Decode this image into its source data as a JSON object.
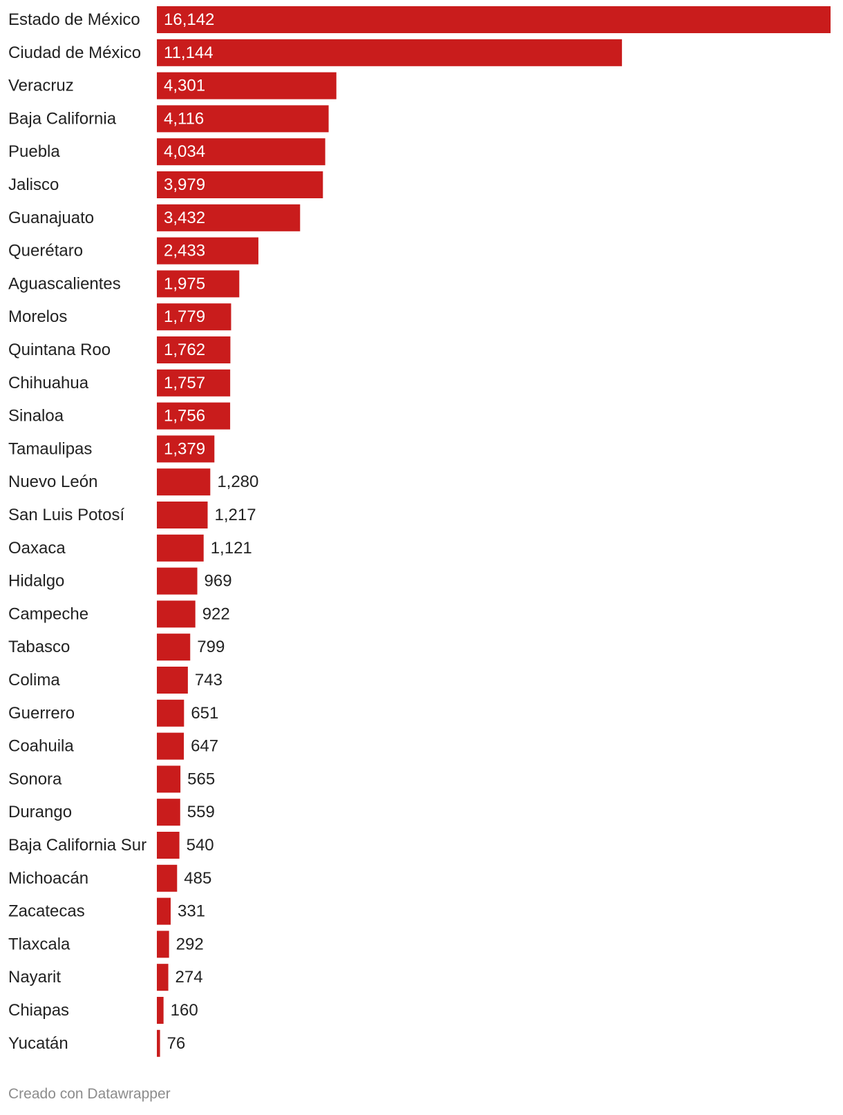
{
  "chart_data": {
    "type": "bar",
    "orientation": "horizontal",
    "categories": [
      "Estado de México",
      "Ciudad de México",
      "Veracruz",
      "Baja California",
      "Puebla",
      "Jalisco",
      "Guanajuato",
      "Querétaro",
      "Aguascalientes",
      "Morelos",
      "Quintana Roo",
      "Chihuahua",
      "Sinaloa",
      "Tamaulipas",
      "Nuevo León",
      "San Luis Potosí",
      "Oaxaca",
      "Hidalgo",
      "Campeche",
      "Tabasco",
      "Colima",
      "Guerrero",
      "Coahuila",
      "Sonora",
      "Durango",
      "Baja California Sur",
      "Michoacán",
      "Zacatecas",
      "Tlaxcala",
      "Nayarit",
      "Chiapas",
      "Yucatán"
    ],
    "values": [
      16142,
      11144,
      4301,
      4116,
      4034,
      3979,
      3432,
      2433,
      1975,
      1779,
      1762,
      1757,
      1756,
      1379,
      1280,
      1217,
      1121,
      969,
      922,
      799,
      743,
      651,
      647,
      565,
      559,
      540,
      485,
      331,
      292,
      274,
      160,
      76
    ],
    "value_labels": [
      "16,142",
      "11,144",
      "4,301",
      "4,116",
      "4,034",
      "3,979",
      "3,432",
      "2,433",
      "1,975",
      "1,779",
      "1,762",
      "1,757",
      "1,756",
      "1,379",
      "1,280",
      "1,217",
      "1,121",
      "969",
      "922",
      "799",
      "743",
      "651",
      "647",
      "565",
      "559",
      "540",
      "485",
      "331",
      "292",
      "274",
      "160",
      "76"
    ],
    "xlim": [
      0,
      16142
    ],
    "bar_color": "#c91c1c",
    "grid": false
  },
  "footer": {
    "credit": "Creado con Datawrapper"
  }
}
